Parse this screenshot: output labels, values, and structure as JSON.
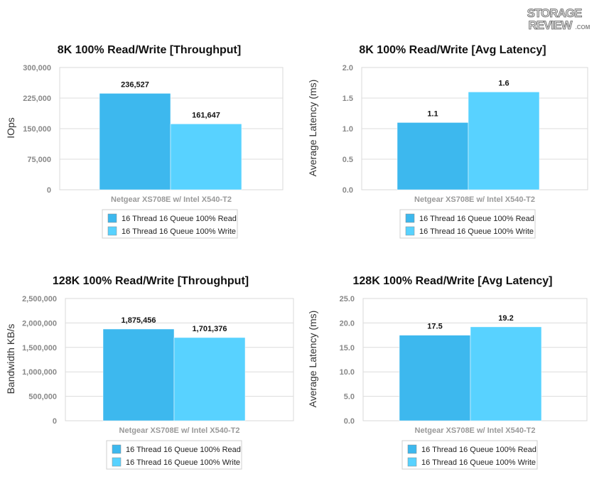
{
  "logo_text": "STORAGE REVIEW.COM",
  "colors": {
    "read": "#3db8ee",
    "write": "#58d2ff"
  },
  "chart_data": [
    {
      "type": "bar",
      "title": "8K 100% Read/Write [Throughput]",
      "ylabel": "IOps",
      "xlabel": "",
      "categories": [
        "Netgear XS708E w/ Intel X540-T2"
      ],
      "ylim": [
        0,
        300000
      ],
      "yticks": [
        "0",
        "75,000",
        "150,000",
        "225,000",
        "300,000"
      ],
      "ytick_values": [
        0,
        75000,
        150000,
        225000,
        300000
      ],
      "series": [
        {
          "name": "16 Thread 16 Queue 100% Read",
          "values": [
            236527
          ],
          "labels": [
            "236,527"
          ]
        },
        {
          "name": "16 Thread 16 Queue 100% Write",
          "values": [
            161647
          ],
          "labels": [
            "161,647"
          ]
        }
      ],
      "grid": true,
      "legend": "bottom"
    },
    {
      "type": "bar",
      "title": "8K 100% Read/Write [Avg Latency]",
      "ylabel": "Average Latency (ms)",
      "xlabel": "",
      "categories": [
        "Netgear XS708E w/ Intel X540-T2"
      ],
      "ylim": [
        0,
        2.0
      ],
      "yticks": [
        "0.0",
        "0.5",
        "1.0",
        "1.5",
        "2.0"
      ],
      "ytick_values": [
        0,
        0.5,
        1.0,
        1.5,
        2.0
      ],
      "series": [
        {
          "name": "16 Thread 16 Queue 100% Read",
          "values": [
            1.1
          ],
          "labels": [
            "1.1"
          ]
        },
        {
          "name": "16 Thread 16 Queue 100% Write",
          "values": [
            1.6
          ],
          "labels": [
            "1.6"
          ]
        }
      ],
      "grid": true,
      "legend": "bottom"
    },
    {
      "type": "bar",
      "title": "128K 100% Read/Write [Throughput]",
      "ylabel": "Bandwidth KB/s",
      "xlabel": "",
      "categories": [
        "Netgear XS708E w/ Intel X540-T2"
      ],
      "ylim": [
        0,
        2500000
      ],
      "yticks": [
        "0",
        "500,000",
        "1,000,000",
        "1,500,000",
        "2,000,000",
        "2,500,000"
      ],
      "ytick_values": [
        0,
        500000,
        1000000,
        1500000,
        2000000,
        2500000
      ],
      "series": [
        {
          "name": "16 Thread 16 Queue 100% Read",
          "values": [
            1875456
          ],
          "labels": [
            "1,875,456"
          ]
        },
        {
          "name": "16 Thread 16 Queue 100% Write",
          "values": [
            1701376
          ],
          "labels": [
            "1,701,376"
          ]
        }
      ],
      "grid": true,
      "legend": "bottom"
    },
    {
      "type": "bar",
      "title": "128K 100% Read/Write [Avg Latency]",
      "ylabel": "Average Latency (ms)",
      "xlabel": "",
      "categories": [
        "Netgear XS708E w/ Intel X540-T2"
      ],
      "ylim": [
        0,
        25.0
      ],
      "yticks": [
        "0.0",
        "5.0",
        "10.0",
        "15.0",
        "20.0",
        "25.0"
      ],
      "ytick_values": [
        0,
        5,
        10,
        15,
        20,
        25
      ],
      "series": [
        {
          "name": "16 Thread 16 Queue 100% Read",
          "values": [
            17.5
          ],
          "labels": [
            "17.5"
          ]
        },
        {
          "name": "16 Thread 16 Queue 100% Write",
          "values": [
            19.2
          ],
          "labels": [
            "19.2"
          ]
        }
      ],
      "grid": true,
      "legend": "bottom"
    }
  ]
}
